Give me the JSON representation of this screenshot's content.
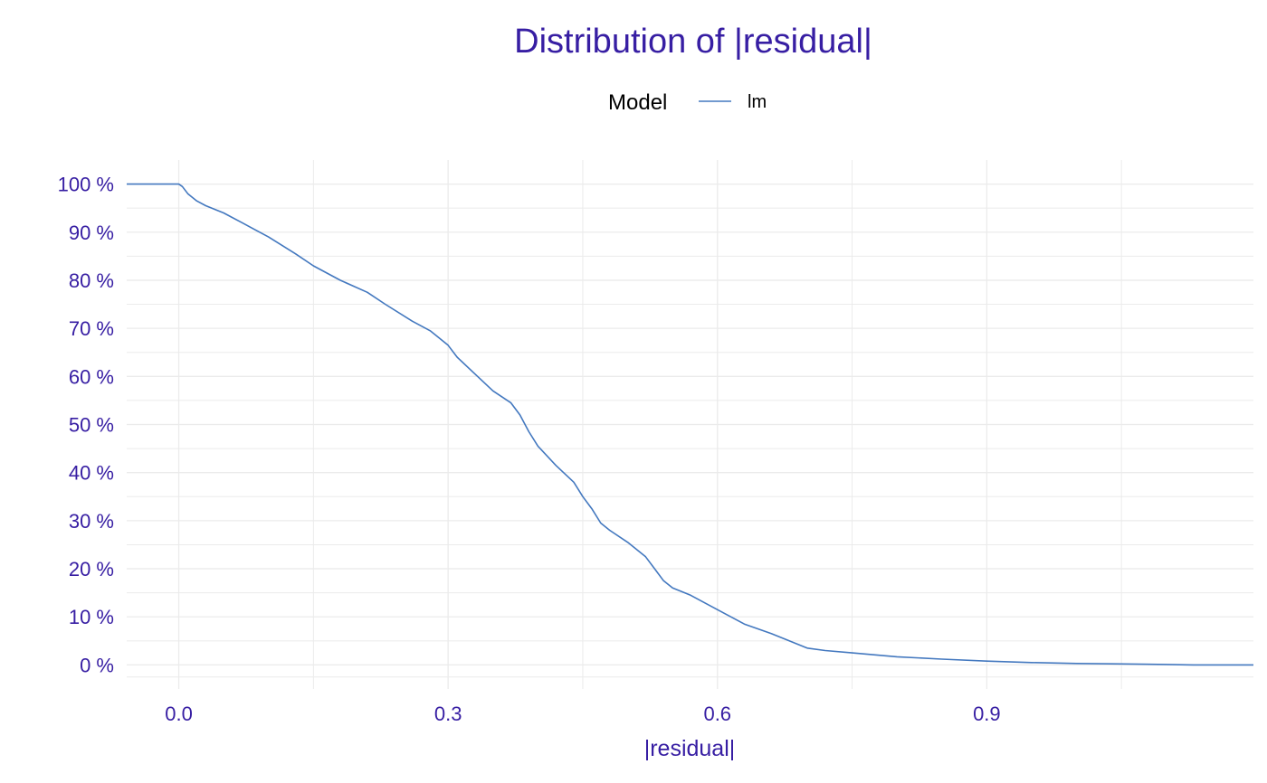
{
  "colors": {
    "title": "#371ea3",
    "tick": "#371ea3",
    "legend_text": "#000000",
    "grid": "#ebebeb",
    "line": "#4378bf"
  },
  "legend": {
    "title": "Model",
    "placement": "top-center"
  },
  "chart_data": {
    "type": "line",
    "title": "Distribution of |residual|",
    "xlabel": "|residual|",
    "ylabel": "",
    "xlim": [
      -0.058,
      1.197
    ],
    "ylim": [
      -0.05,
      1.05
    ],
    "grid": true,
    "x_ticks": [
      0.0,
      0.3,
      0.6,
      0.9
    ],
    "x_tick_labels": [
      "0.0",
      "0.3",
      "0.6",
      "0.9"
    ],
    "y_ticks": [
      0,
      0.1,
      0.2,
      0.3,
      0.4,
      0.5,
      0.6,
      0.7,
      0.8,
      0.9,
      1.0
    ],
    "y_tick_labels": [
      "0 %",
      "10 %",
      "20 %",
      "30 %",
      "40 %",
      "50 %",
      "60 %",
      "70 %",
      "80 %",
      "90 %",
      "100 %"
    ],
    "series": [
      {
        "name": "lm",
        "x": [
          -0.058,
          0.0,
          0.004,
          0.01,
          0.02,
          0.03,
          0.05,
          0.07,
          0.1,
          0.13,
          0.15,
          0.18,
          0.21,
          0.23,
          0.26,
          0.28,
          0.29,
          0.3,
          0.31,
          0.33,
          0.35,
          0.37,
          0.38,
          0.39,
          0.4,
          0.42,
          0.44,
          0.45,
          0.46,
          0.47,
          0.48,
          0.5,
          0.52,
          0.53,
          0.54,
          0.55,
          0.57,
          0.6,
          0.63,
          0.66,
          0.68,
          0.7,
          0.72,
          0.75,
          0.8,
          0.85,
          0.9,
          0.95,
          1.0,
          1.05,
          1.1,
          1.13,
          1.197
        ],
        "y": [
          1.0,
          1.0,
          0.995,
          0.98,
          0.965,
          0.955,
          0.94,
          0.92,
          0.89,
          0.855,
          0.83,
          0.8,
          0.775,
          0.75,
          0.715,
          0.695,
          0.68,
          0.665,
          0.64,
          0.605,
          0.57,
          0.545,
          0.52,
          0.485,
          0.455,
          0.415,
          0.38,
          0.35,
          0.325,
          0.295,
          0.28,
          0.255,
          0.225,
          0.2,
          0.175,
          0.16,
          0.145,
          0.115,
          0.085,
          0.065,
          0.05,
          0.035,
          0.03,
          0.025,
          0.017,
          0.012,
          0.008,
          0.005,
          0.003,
          0.002,
          0.001,
          0.0,
          0.0
        ]
      }
    ]
  }
}
